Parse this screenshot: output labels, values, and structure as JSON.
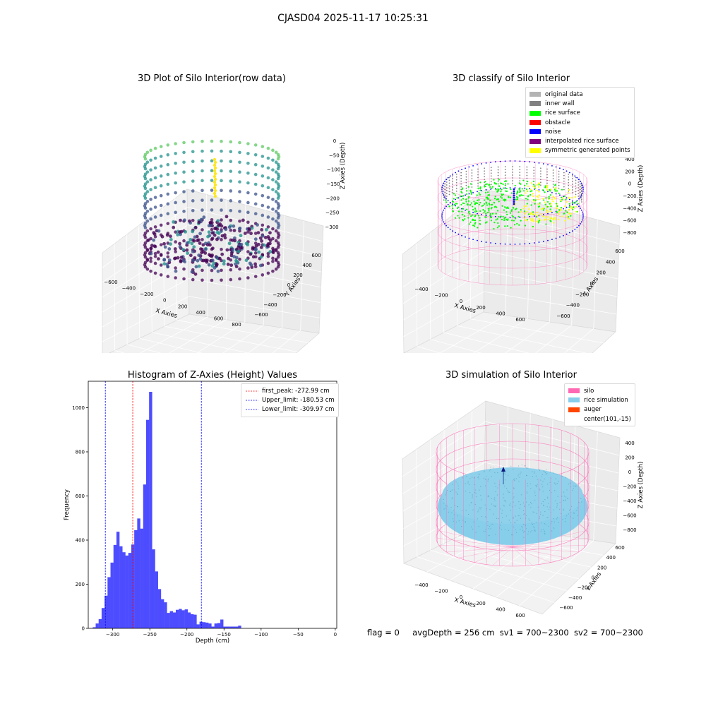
{
  "figure": {
    "suptitle": "CJASD04 2025-11-17 10:25:31",
    "footer": {
      "flag": "flag = 0",
      "avg_depth": "avgDepth = 256 cm",
      "sv1": "sv1 = 700~2300",
      "sv2": "sv2 = 700~2300"
    }
  },
  "plot_raw": {
    "title": "3D Plot of Silo Interior(row data)",
    "xlabel": "X Axies",
    "ylabel": "Y Axies",
    "zlabel": "Z Axies (Depth)",
    "x_ticks": [
      "−600",
      "−400",
      "−200",
      "0",
      "200",
      "400",
      "600",
      "800"
    ],
    "y_ticks": [
      "−600",
      "−400",
      "−200",
      "0",
      "200",
      "400",
      "600"
    ],
    "z_ticks": [
      "0",
      "−50",
      "−100",
      "−150",
      "−200",
      "−250",
      "−300"
    ],
    "colormap": [
      "#440154",
      "#3b528b",
      "#21918c",
      "#5ec962",
      "#fde725"
    ]
  },
  "plot_classify": {
    "title": "3D classify of Silo Interior",
    "xlabel": "X Axies",
    "ylabel": "Y Axies",
    "zlabel": "Z Axies (Depth)",
    "x_ticks": [
      "−400",
      "−200",
      "0",
      "200",
      "400",
      "600"
    ],
    "y_ticks": [
      "−600",
      "−400",
      "−200",
      "0",
      "200",
      "400",
      "600"
    ],
    "z_ticks": [
      "400",
      "200",
      "0",
      "−200",
      "−400",
      "−600",
      "−800"
    ],
    "legend": [
      {
        "label": "original data",
        "color": "#b3b3b3"
      },
      {
        "label": "inner wall",
        "color": "#808080"
      },
      {
        "label": "rice surface",
        "color": "#00ff00"
      },
      {
        "label": "obstacle",
        "color": "#ff0000"
      },
      {
        "label": "noise",
        "color": "#0000ff"
      },
      {
        "label": "interpolated rice surface",
        "color": "#800080"
      },
      {
        "label": "symmetric generated points",
        "color": "#ffff00"
      }
    ],
    "wall_color": "#ff69b4"
  },
  "plot_sim": {
    "title": "3D simulation of Silo Interior",
    "xlabel": "X Axies",
    "ylabel": "Y Axies",
    "zlabel": "Z Axies (Depth)",
    "x_ticks": [
      "−400",
      "−200",
      "0",
      "200",
      "400",
      "600"
    ],
    "y_ticks": [
      "−600",
      "−400",
      "−200",
      "0",
      "200",
      "400",
      "600"
    ],
    "z_ticks": [
      "400",
      "200",
      "0",
      "−200",
      "−400",
      "−600",
      "−800"
    ],
    "legend": [
      {
        "label": "silo",
        "color": "#ff69b4"
      },
      {
        "label": "rice simulation",
        "color": "#87ceeb"
      },
      {
        "label": "auger",
        "color": "#ff4500"
      },
      {
        "label": "center(101,-15)",
        "color": ""
      }
    ]
  },
  "chart_data": {
    "type": "bar",
    "title": "Histogram of Z-Axies (Height) Values",
    "xlabel": "Depth (cm)",
    "ylabel": "Frequency",
    "xlim": [
      -333,
      2
    ],
    "ylim": [
      0,
      1120
    ],
    "x_ticks": [
      -300,
      -250,
      -200,
      -150,
      -100,
      -50,
      0
    ],
    "x_tick_labels": [
      "−300",
      "−250",
      "−200",
      "−150",
      "−100",
      "−50",
      "0"
    ],
    "y_ticks": [
      0,
      200,
      400,
      600,
      800,
      1000
    ],
    "y_tick_labels": [
      "0",
      "200",
      "400",
      "600",
      "800",
      "1000"
    ],
    "bar_color": "#4d4dff",
    "bin_start": -327,
    "bin_width": 4.0,
    "counts": [
      5,
      22,
      42,
      92,
      148,
      232,
      298,
      378,
      438,
      372,
      345,
      330,
      342,
      380,
      445,
      498,
      452,
      652,
      945,
      1072,
      358,
      258,
      178,
      132,
      118,
      70,
      78,
      72,
      84,
      88,
      82,
      86,
      72,
      64,
      62,
      18,
      30,
      28,
      26,
      22,
      8,
      22,
      24,
      40,
      8,
      8,
      8,
      8,
      8,
      12
    ],
    "lines": [
      {
        "label": "first_peak: -272.99 cm",
        "x": -272.99,
        "color": "#ff0000"
      },
      {
        "label": "Upper_limit: -180.53 cm",
        "x": -180.53,
        "color": "#0000ff"
      },
      {
        "label": "Lower_limit: -309.97 cm",
        "x": -309.97,
        "color": "#0000ff"
      }
    ],
    "legend_position": "top-right"
  }
}
